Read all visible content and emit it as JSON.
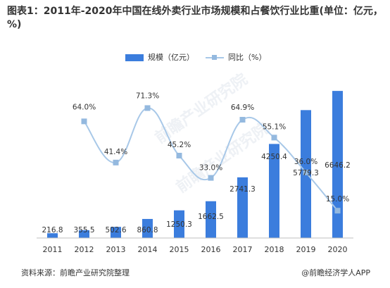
{
  "title": "图表1：2011年-2020年中国在线外卖行业市场规模和占餐饮行业比重(单位：亿元，%)",
  "source": "资料来源：前瞻产业研究院整理",
  "attribution": "@前瞻经济学人APP",
  "watermark": "前瞻产业研究院",
  "colors": {
    "bar": "#3b7ddd",
    "line": "#a8c8e8",
    "marker": "#94b9df"
  },
  "chart_data": {
    "type": "bar",
    "categories": [
      "2011",
      "2012",
      "2013",
      "2014",
      "2015",
      "2016",
      "2017",
      "2018",
      "2019",
      "2020"
    ],
    "series": [
      {
        "name": "规模（亿元）",
        "type": "bar",
        "axis": "left",
        "values": [
          216.8,
          355.5,
          502.6,
          860.8,
          1250.3,
          1662.5,
          2741.3,
          4250.4,
          5779.3,
          6646.2
        ],
        "labels": [
          "216.8",
          "355.5",
          "502.6",
          "860.8",
          "1250.3",
          "1662.5",
          "2741.3",
          "4250.4",
          "5779.3",
          "6646.2"
        ]
      },
      {
        "name": "同比（%）",
        "type": "line",
        "axis": "right",
        "values": [
          null,
          64.0,
          41.4,
          71.3,
          45.2,
          33.0,
          64.9,
          55.1,
          36.0,
          15.0
        ],
        "labels": [
          null,
          "64.0%",
          "41.4%",
          "71.3%",
          "45.2%",
          "33.0%",
          "64.9%",
          "55.1%",
          "36.0%",
          "15.0%"
        ]
      }
    ],
    "ylim_left": [
      0,
      7000
    ],
    "ylim_right": [
      0,
      85
    ],
    "grid": false,
    "legend_position": "top"
  }
}
